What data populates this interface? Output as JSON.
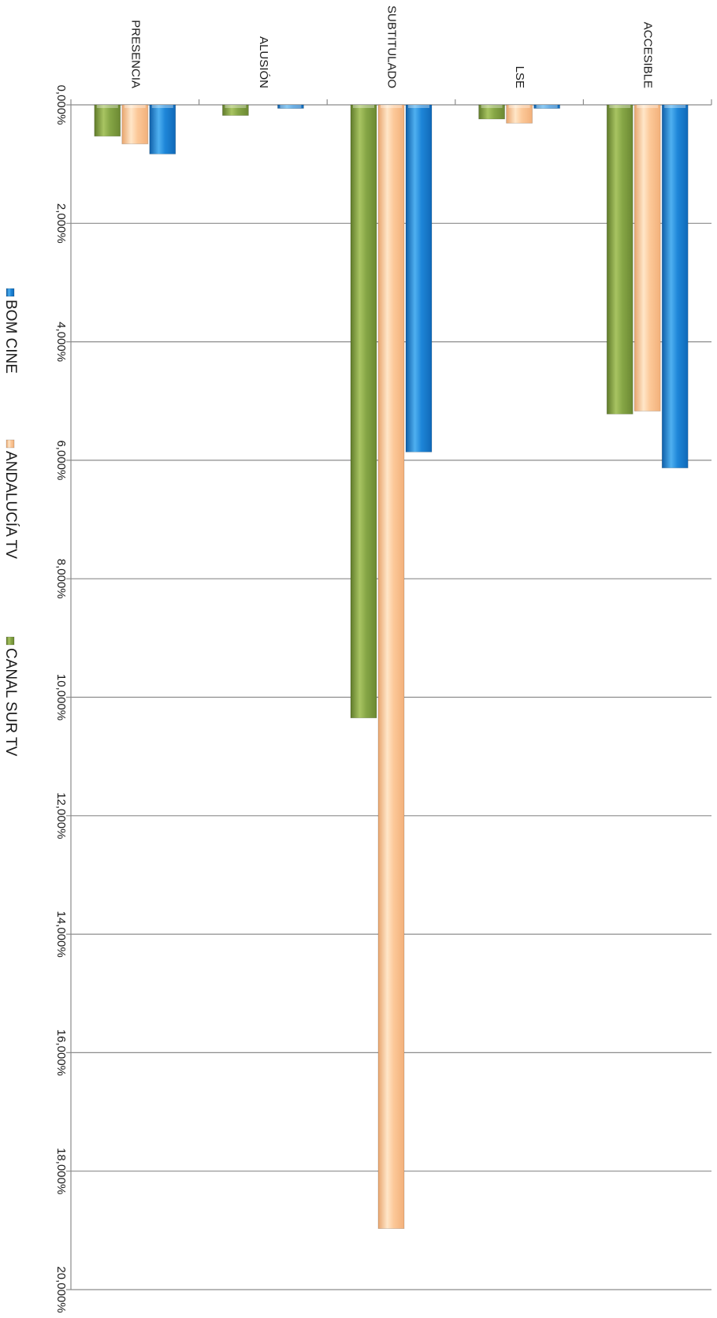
{
  "chart_data": {
    "type": "bar",
    "orientation": "rotated-90",
    "categories": [
      "PRESENCIA",
      "ALUSIÓN",
      "SUBTITULADO",
      "LSE",
      "ACCESIBLE"
    ],
    "series": [
      {
        "name": "CANAL SUR TV",
        "color": "#7f9e3f",
        "values": [
          0.53,
          0.18,
          10.35,
          0.24,
          5.22
        ]
      },
      {
        "name": "ANDALUCÍA TV",
        "color": "#fac090",
        "values": [
          0.66,
          0.0,
          18.97,
          0.31,
          5.17
        ]
      },
      {
        "name": "BOM CINE",
        "color": "#1d7fd2",
        "values": [
          0.83,
          0.06,
          5.86,
          0.06,
          6.13
        ]
      }
    ],
    "value_axis": {
      "ticks": [
        "0,000%",
        "2,000%",
        "4,000%",
        "6,000%",
        "8,000%",
        "10,000%",
        "12,000%",
        "14,000%",
        "16,000%",
        "18,000%",
        "20,000%"
      ],
      "range": [
        0,
        20
      ]
    },
    "grid": true,
    "legend_placement": "left"
  }
}
